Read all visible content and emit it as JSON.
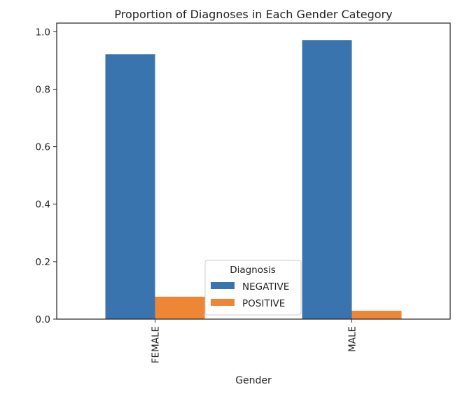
{
  "chart_data": {
    "type": "bar",
    "title": "Proportion of Diagnoses in Each Gender Category",
    "xlabel": "Gender",
    "ylabel": "",
    "categories": [
      "FEMALE",
      "MALE"
    ],
    "series": [
      {
        "name": "NEGATIVE",
        "values": [
          0.922,
          0.971
        ],
        "color": "#3a74ae"
      },
      {
        "name": "POSITIVE",
        "values": [
          0.078,
          0.029
        ],
        "color": "#ef8636"
      }
    ],
    "ylim": [
      0,
      1.03
    ],
    "yticks": [
      "0.0",
      "0.2",
      "0.4",
      "0.6",
      "0.8",
      "1.0"
    ],
    "legend": {
      "title": "Diagnosis",
      "placement": "bottom-center"
    },
    "grid": false
  }
}
